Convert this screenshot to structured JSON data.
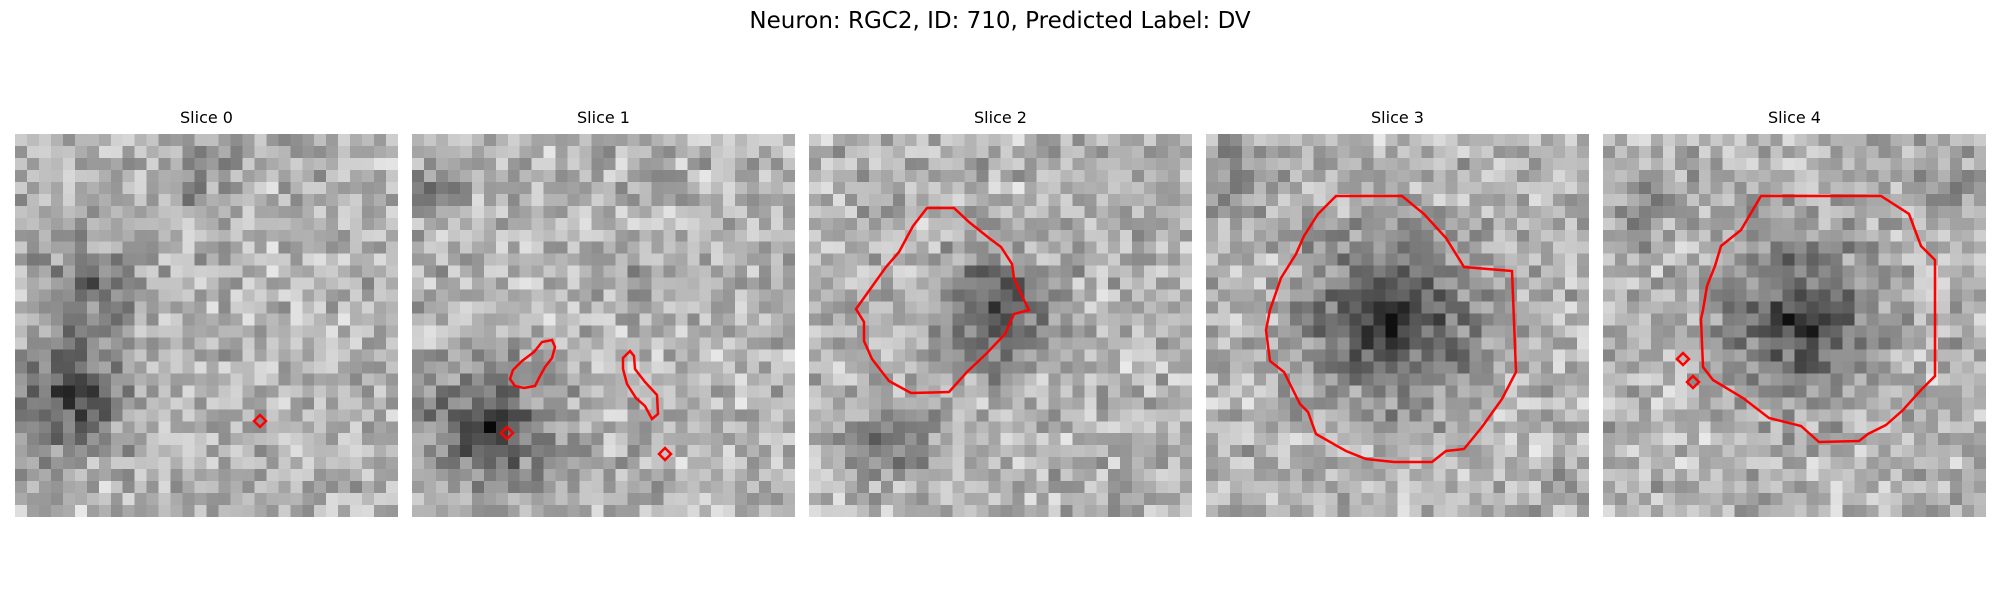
{
  "figure": {
    "title": "Neuron: RGC2, ID: 710, Predicted Label: DV"
  },
  "panels": [
    {
      "title": "Slice 0",
      "contour_color": "#ff0000"
    },
    {
      "title": "Slice 1",
      "contour_color": "#ff0000"
    },
    {
      "title": "Slice 2",
      "contour_color": "#ff0000"
    },
    {
      "title": "Slice 3",
      "contour_color": "#ff0000"
    },
    {
      "title": "Slice 4",
      "contour_color": "#ff0000"
    }
  ],
  "colors": {
    "background": "#ffffff",
    "contour": "#ff0000",
    "colormap": "grayscale"
  }
}
